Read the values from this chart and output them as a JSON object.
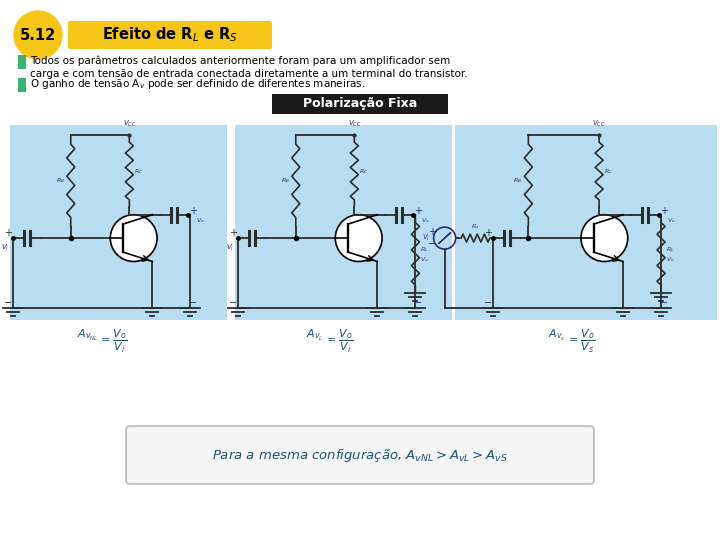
{
  "bg_color": "#ffffff",
  "header_circle_color": "#f5c518",
  "header_circle_text": "5.12",
  "header_circle_text_color": "#000000",
  "header_box_color": "#f5c518",
  "header_box_text": "Efeito de R$_L$ e R$_S$",
  "header_box_text_color": "#000000",
  "bullet1_color": "#3cb371",
  "bullet1_text_line1": "Todos os parâmetros calculados anteriormente foram para um amplificador sem",
  "bullet1_text_line2": "carga e com tensão de entrada conectada diretamente a um terminal do transistor.",
  "bullet2_color": "#3cb371",
  "bullet2_text": "O ganho de tensão A$_v$ pode ser definido de diferentes maneiras.",
  "polarization_box_color": "#1a1a1a",
  "polarization_box_text": "Polarização Fixa",
  "polarization_box_text_color": "#ffffff",
  "circuit_bg_color": "#b8ddf0",
  "formula_box_color": "#f5f5f5",
  "formula_box_border": "#bbbbbb",
  "formula_text": "Para a mesma configuração, $A_{vNL} > A_{vL} > A_{vS}$",
  "formula_text_color": "#1a5276",
  "circuit1_label_a": "$A_{v_{NL}}$",
  "circuit1_label_b": "= $\\dfrac{V_o}{V_i}$",
  "circuit2_label_a": "$A_{v_L}$",
  "circuit2_label_b": "= $\\dfrac{V_o}{V_i}$",
  "circuit3_label_a": "$A_{v_s}$",
  "circuit3_label_b": "= $\\dfrac{V_o}{V_s}$",
  "circuit_label_color": "#1a5276",
  "wire_color": "#2c2c2c",
  "component_color": "#2c2c2c",
  "label_color": "#2c2c6e"
}
